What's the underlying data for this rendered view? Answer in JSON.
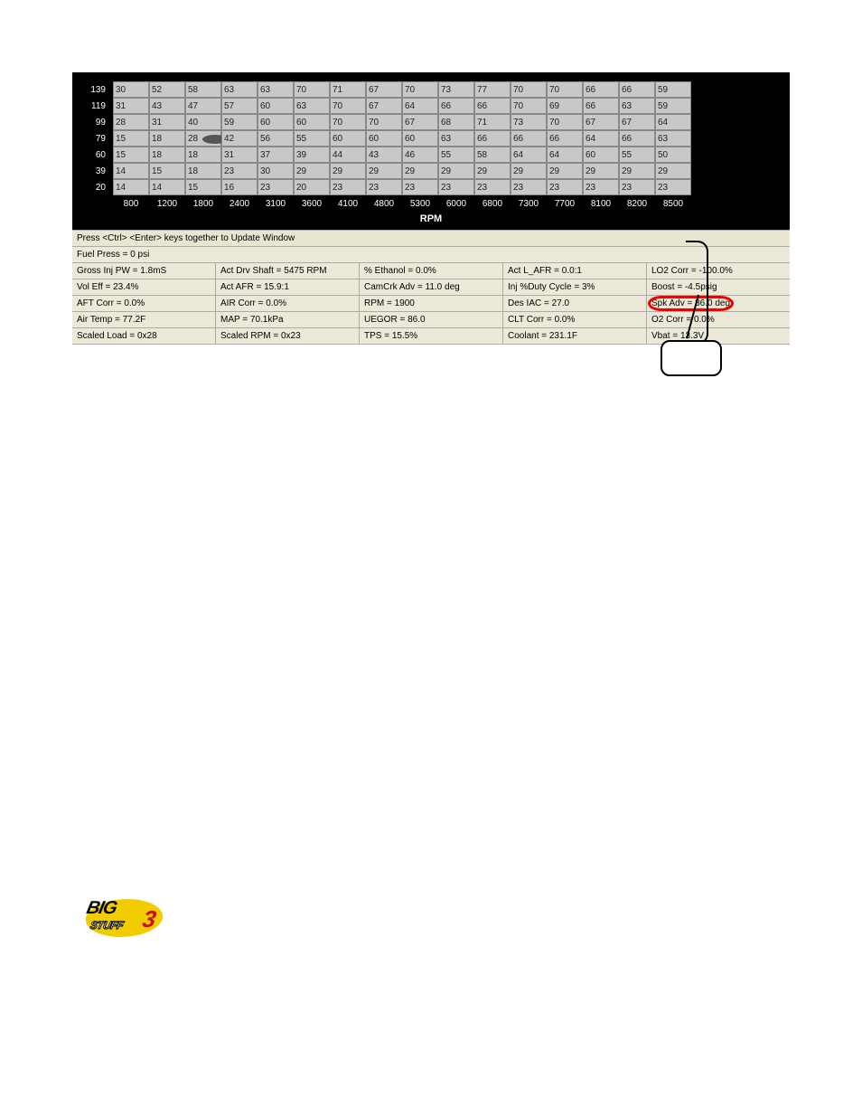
{
  "grid": {
    "y_labels": [
      "139",
      "119",
      "99",
      "79",
      "60",
      "39",
      "20"
    ],
    "x_labels": [
      "800",
      "1200",
      "1800",
      "2400",
      "3100",
      "3600",
      "4100",
      "4800",
      "5300",
      "6000",
      "6800",
      "7300",
      "7700",
      "8100",
      "8200",
      "8500"
    ],
    "rows": [
      [
        "30",
        "52",
        "58",
        "63",
        "63",
        "70",
        "71",
        "67",
        "70",
        "73",
        "77",
        "70",
        "70",
        "66",
        "66",
        "59"
      ],
      [
        "31",
        "43",
        "47",
        "57",
        "60",
        "63",
        "70",
        "67",
        "64",
        "66",
        "66",
        "70",
        "69",
        "66",
        "63",
        "59"
      ],
      [
        "28",
        "31",
        "40",
        "59",
        "60",
        "60",
        "70",
        "70",
        "67",
        "68",
        "71",
        "73",
        "70",
        "67",
        "67",
        "64"
      ],
      [
        "15",
        "18",
        "28",
        "42",
        "56",
        "55",
        "60",
        "60",
        "60",
        "63",
        "66",
        "66",
        "66",
        "64",
        "66",
        "63"
      ],
      [
        "15",
        "18",
        "18",
        "31",
        "37",
        "39",
        "44",
        "43",
        "46",
        "55",
        "58",
        "64",
        "64",
        "60",
        "55",
        "50"
      ],
      [
        "14",
        "15",
        "18",
        "23",
        "30",
        "29",
        "29",
        "29",
        "29",
        "29",
        "29",
        "29",
        "29",
        "29",
        "29",
        "29"
      ],
      [
        "14",
        "14",
        "15",
        "16",
        "23",
        "20",
        "23",
        "23",
        "23",
        "23",
        "23",
        "23",
        "23",
        "23",
        "23",
        "23"
      ]
    ],
    "axis_label": "RPM"
  },
  "hint": "Press <Ctrl> <Enter> keys together to Update Window",
  "info": {
    "fuel_press": "Fuel Press = 0 psi",
    "rows": [
      [
        "Gross Inj PW = 1.8mS",
        "Act Drv Shaft = 5475 RPM",
        "% Ethanol = 0.0%",
        "Act L_AFR = 0.0:1",
        "LO2 Corr = -100.0%"
      ],
      [
        "Vol Eff = 23.4%",
        "Act AFR = 15.9:1",
        "CamCrk Adv = 11.0 deg",
        "Inj %Duty Cycle = 3%",
        "Boost = -4.5psig"
      ],
      [
        "AFT Corr = 0.0%",
        "AIR Corr = 0.0%",
        "RPM = 1900",
        "Des IAC = 27.0",
        "Spk Adv = 36.0 deg"
      ],
      [
        "Air Temp = 77.2F",
        "MAP = 70.1kPa",
        "UEGOR = 86.0",
        "CLT Corr = 0.0%",
        "O2 Corr = 0.0%"
      ],
      [
        "Scaled Load = 0x28",
        "Scaled RPM = 0x23",
        "TPS = 15.5%",
        "Coolant = 231.1F",
        "Vbat = 13.3V"
      ]
    ]
  },
  "highlight": {
    "row": 2,
    "col": 4
  },
  "ellipse": {
    "row": 3,
    "col": 2
  },
  "logo": {
    "line1": "BIG",
    "line2": "STUFF",
    "num": "3"
  }
}
